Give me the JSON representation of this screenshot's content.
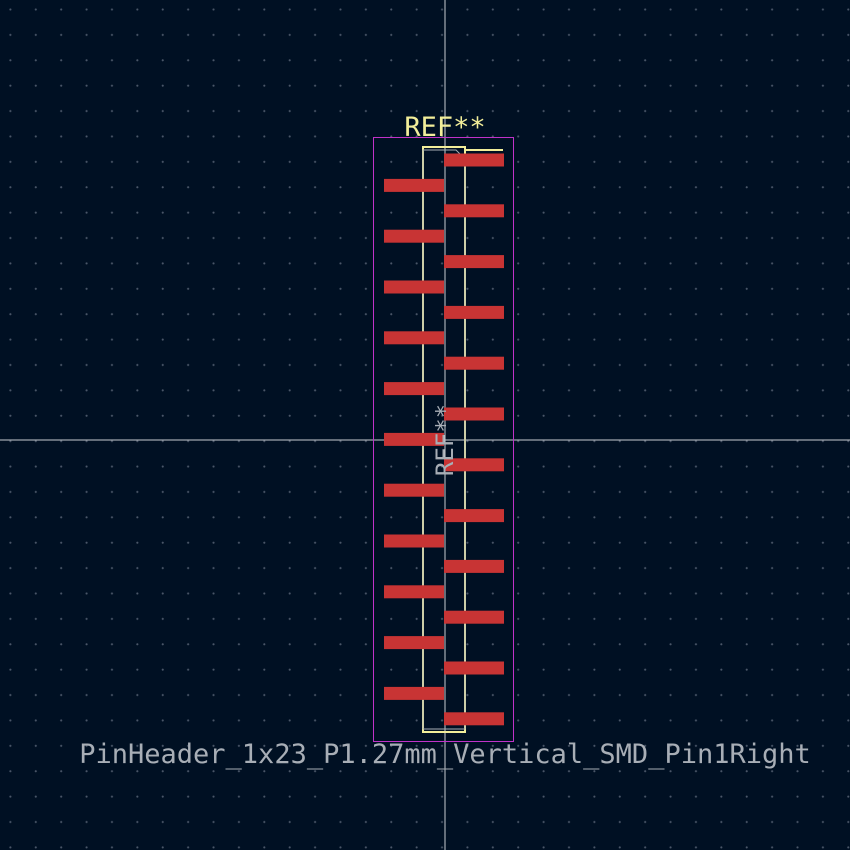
{
  "footprint": {
    "reference": "REF**",
    "fab_reference": "REF**",
    "value": "PinHeader_1x23_P1.27mm_Vertical_SMD_Pin1Right",
    "pin_count": 23
  },
  "colors": {
    "background": "#001023",
    "grid_dot": "#4a5668",
    "crosshair": "#c8ccd2",
    "courtyard": "#c032c8",
    "silkscreen": "#f2ee9a",
    "fab": "#a8aeb6",
    "pad": "#c83434"
  }
}
